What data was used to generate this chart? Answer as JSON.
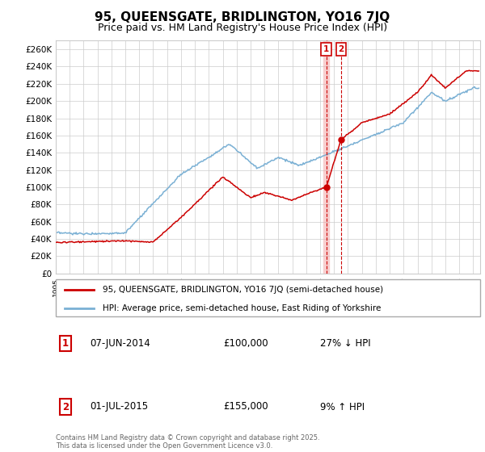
{
  "title": "95, QUEENSGATE, BRIDLINGTON, YO16 7JQ",
  "subtitle": "Price paid vs. HM Land Registry's House Price Index (HPI)",
  "title_fontsize": 11,
  "subtitle_fontsize": 9,
  "ylim": [
    0,
    270000
  ],
  "yticks": [
    0,
    20000,
    40000,
    60000,
    80000,
    100000,
    120000,
    140000,
    160000,
    180000,
    200000,
    220000,
    240000,
    260000
  ],
  "xlim_start": 1995.0,
  "xlim_end": 2025.5,
  "line1_color": "#cc0000",
  "line2_color": "#7ab0d4",
  "line1_label": "95, QUEENSGATE, BRIDLINGTON, YO16 7JQ (semi-detached house)",
  "line2_label": "HPI: Average price, semi-detached house, East Riding of Yorkshire",
  "transaction1_date": "07-JUN-2014",
  "transaction1_price": "£100,000",
  "transaction1_hpi": "27% ↓ HPI",
  "transaction1_year": 2014.44,
  "transaction1_price_val": 100000,
  "transaction2_date": "01-JUL-2015",
  "transaction2_price": "£155,000",
  "transaction2_hpi": "9% ↑ HPI",
  "transaction2_year": 2015.5,
  "transaction2_price_val": 155000,
  "footer": "Contains HM Land Registry data © Crown copyright and database right 2025.\nThis data is licensed under the Open Government Licence v3.0.",
  "bg_color": "#ffffff",
  "grid_color": "#cccccc",
  "legend_border_color": "#aaaaaa",
  "vline1_color": "#ffbbbb",
  "vline2_color": "#cc0000"
}
